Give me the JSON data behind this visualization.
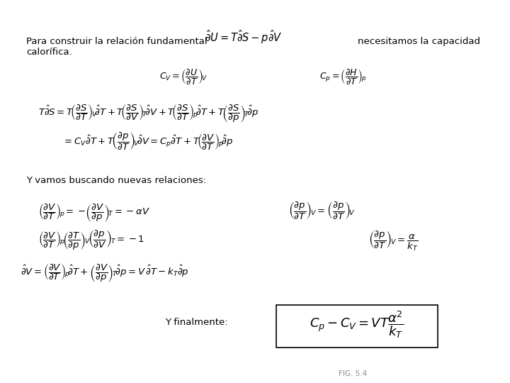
{
  "bg_color": "#ffffff",
  "text_color": "#000000",
  "font_size_main": 9.5,
  "font_size_formula": 11,
  "font_size_box": 13,
  "intro_text1": "Para construir la relación fundamental",
  "intro_text2": "necesitamos la capacidad",
  "intro_text3": "calorífica.",
  "nuevas_text": "Y vamos buscando nuevas relaciones:",
  "finally_text": "Y finalmente:",
  "fig_label": "FIG. 5.4"
}
